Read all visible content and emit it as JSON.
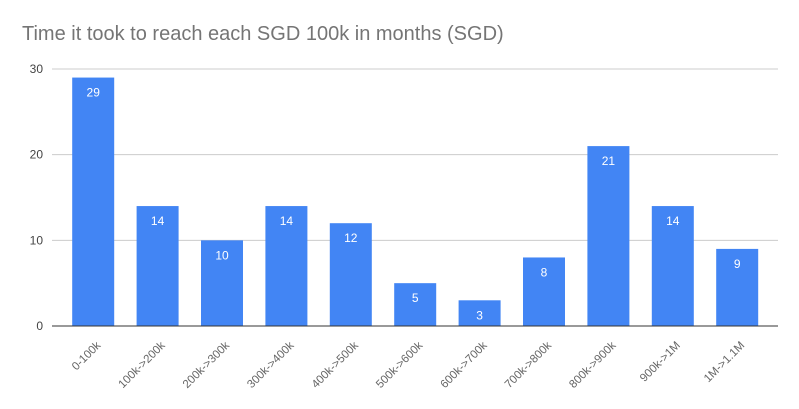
{
  "chart_data": {
    "type": "bar",
    "title": "Time it took to reach each SGD 100k in months (SGD)",
    "xlabel": "",
    "ylabel": "",
    "categories": [
      "0-100k",
      "100k->200k",
      "200k->300k",
      "300k->400k",
      "400k->500k",
      "500k->600k",
      "600k->700k",
      "700k->800k",
      "800k->900k",
      "900k->1M",
      "1M->1.1M"
    ],
    "values": [
      29,
      14,
      10,
      14,
      12,
      5,
      3,
      8,
      21,
      14,
      9
    ],
    "ylim": [
      0,
      30
    ],
    "yticks": [
      0,
      10,
      20,
      30
    ],
    "grid": true,
    "legend": "none",
    "bar_color": "#4285f4"
  }
}
